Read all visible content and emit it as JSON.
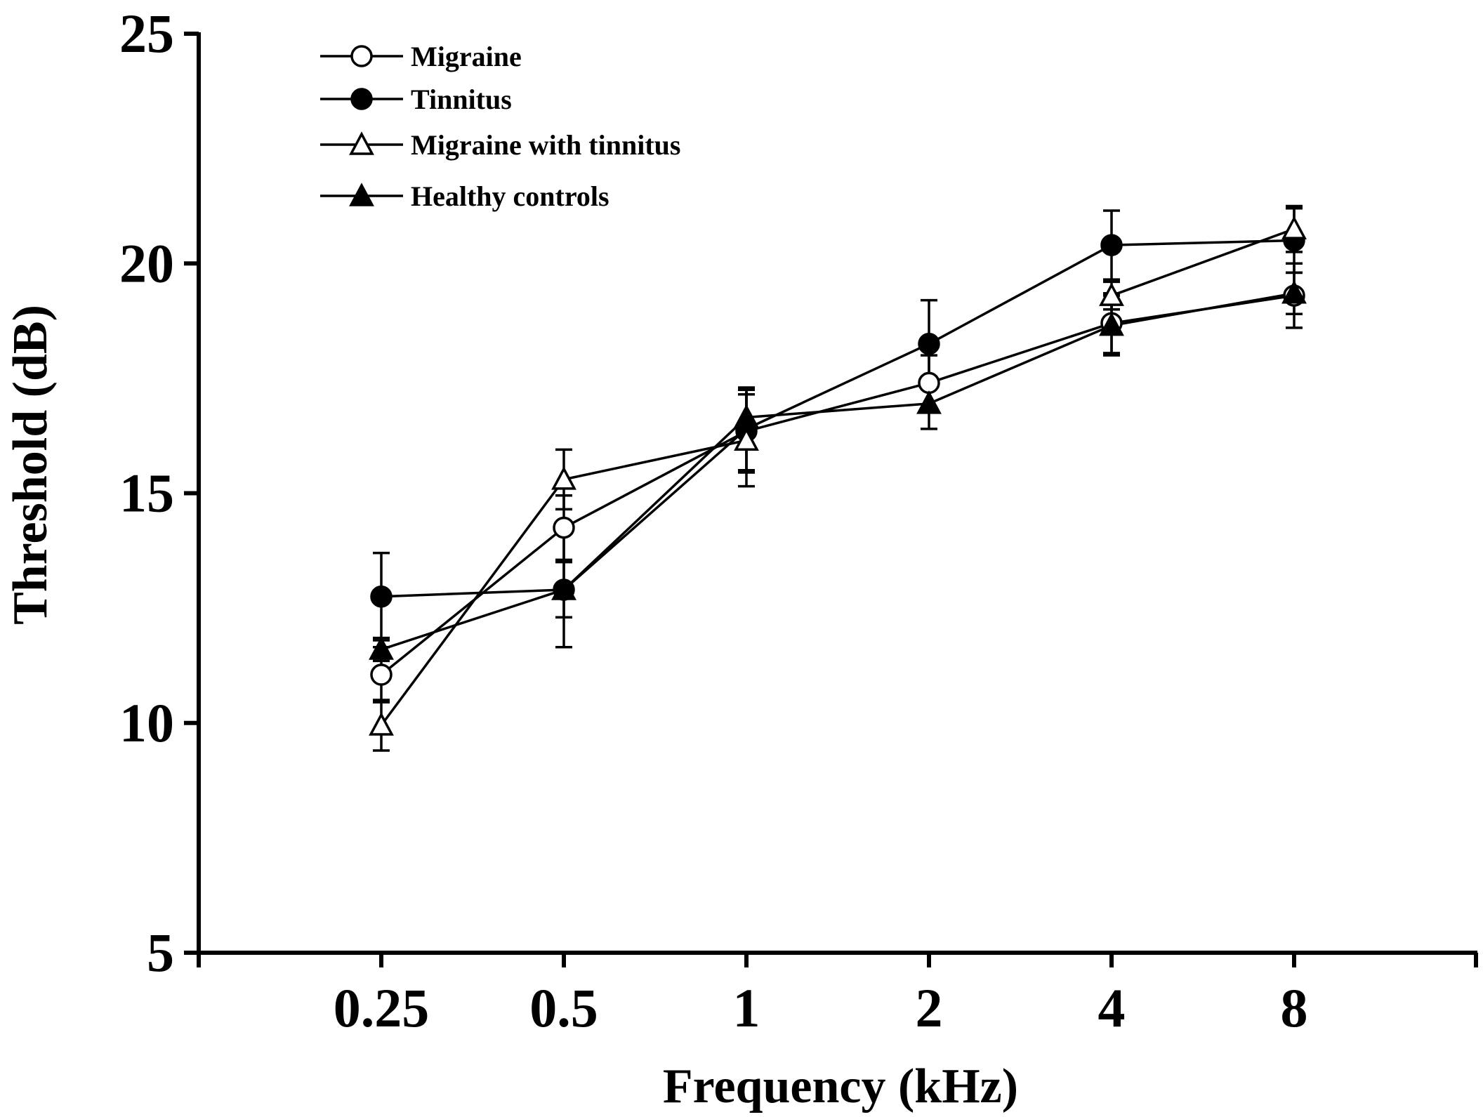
{
  "chart_data": {
    "type": "line",
    "title": "",
    "xlabel": "Frequency (kHz)",
    "ylabel": "Threshold (dB)",
    "categories": [
      "0.25",
      "0.5",
      "1",
      "2",
      "4",
      "8"
    ],
    "ylim": [
      5,
      25
    ],
    "yticks": [
      "5",
      "10",
      "15",
      "20",
      "25"
    ],
    "grid": false,
    "legend_position": "top-left",
    "error_bars": "symmetric, values give half-width in dB",
    "series": [
      {
        "name": "Migraine",
        "marker": "open-circle",
        "values": [
          11.05,
          14.25,
          16.35,
          17.4,
          18.7,
          19.3
        ],
        "errors": [
          0.6,
          0.7,
          0.9,
          0.6,
          0.65,
          0.7
        ]
      },
      {
        "name": "Tinnitus",
        "marker": "filled-circle",
        "values": [
          12.75,
          12.9,
          16.4,
          18.25,
          20.4,
          20.5
        ],
        "errors": [
          0.95,
          1.25,
          0.9,
          0.95,
          0.75,
          0.7
        ]
      },
      {
        "name": "Migraine with tinnitus",
        "marker": "open-triangle",
        "values": [
          9.95,
          15.3,
          16.15,
          null,
          19.3,
          20.75
        ],
        "errors": [
          0.55,
          0.65,
          1.0,
          null,
          0.3,
          0.5
        ]
      },
      {
        "name": "Healthy controls",
        "marker": "filled-triangle",
        "values": [
          11.6,
          12.9,
          16.65,
          16.95,
          18.65,
          19.35
        ],
        "errors": [
          0.25,
          0.6,
          0.6,
          0.55,
          0.65,
          0.45
        ]
      }
    ]
  }
}
